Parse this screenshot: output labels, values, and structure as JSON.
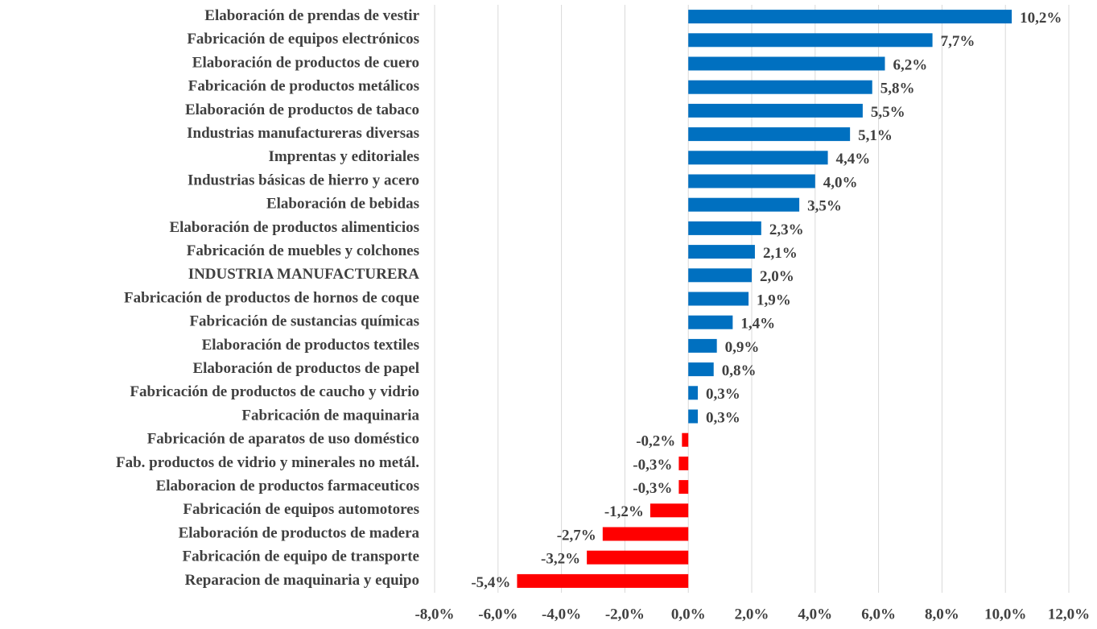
{
  "chart_data": {
    "type": "hbar",
    "categories": [
      "Elaboración de prendas de vestir",
      "Fabricación de equipos electrónicos",
      "Elaboración de productos de cuero",
      "Fabricación de productos metálicos",
      "Elaboración de productos de tabaco",
      "Industrias manufactureras diversas",
      "Imprentas y editoriales",
      "Industrias básicas de hierro y acero",
      "Elaboración de bebidas",
      "Elaboración de productos alimenticios",
      "Fabricación de muebles y colchones",
      "INDUSTRIA MANUFACTURERA",
      "Fabricación de productos de hornos de coque",
      "Fabricación de sustancias químicas",
      "Elaboración de productos textiles",
      "Elaboración de productos de papel",
      "Fabricación de productos de caucho y vidrio",
      "Fabricación de maquinaria",
      "Fabricación de aparatos de uso doméstico",
      "Fab. productos de vidrio y minerales no metál.",
      "Elaboracion de productos farmaceuticos",
      "Fabricación de equipos automotores",
      "Elaboración de productos de madera",
      "Fabricación de equipo de transporte",
      "Reparacion de maquinaria y equipo"
    ],
    "values": [
      10.2,
      7.7,
      6.2,
      5.8,
      5.5,
      5.1,
      4.4,
      4.0,
      3.5,
      2.3,
      2.1,
      2.0,
      1.9,
      1.4,
      0.9,
      0.8,
      0.3,
      0.3,
      -0.2,
      -0.3,
      -0.3,
      -1.2,
      -2.7,
      -3.2,
      -5.4
    ],
    "value_labels": [
      "10,2%",
      "7,7%",
      "6,2%",
      "5,8%",
      "5,5%",
      "5,1%",
      "4,4%",
      "4,0%",
      "3,5%",
      "2,3%",
      "2,1%",
      "2,0%",
      "1,9%",
      "1,4%",
      "0,9%",
      "0,8%",
      "0,3%",
      "0,3%",
      "-0,2%",
      "-0,3%",
      "-0,3%",
      "-1,2%",
      "-2,7%",
      "-3,2%",
      "-5,4%"
    ],
    "color": "#0070C0",
    "negative_color": "#FF0000",
    "xlim": [
      -8,
      12
    ],
    "xticks": [
      {
        "value": -8,
        "label": "-8,0%"
      },
      {
        "value": -6,
        "label": "-6,0%"
      },
      {
        "value": -4,
        "label": "-4,0%"
      },
      {
        "value": -2,
        "label": "-2,0%"
      },
      {
        "value": 0,
        "label": "0,0%"
      },
      {
        "value": 2,
        "label": "2,0%"
      },
      {
        "value": 4,
        "label": "4,0%"
      },
      {
        "value": 6,
        "label": "6,0%"
      },
      {
        "value": 8,
        "label": "8,0%"
      },
      {
        "value": 10,
        "label": "10,0%"
      },
      {
        "value": 12,
        "label": "12,0%"
      }
    ],
    "grid": true
  }
}
